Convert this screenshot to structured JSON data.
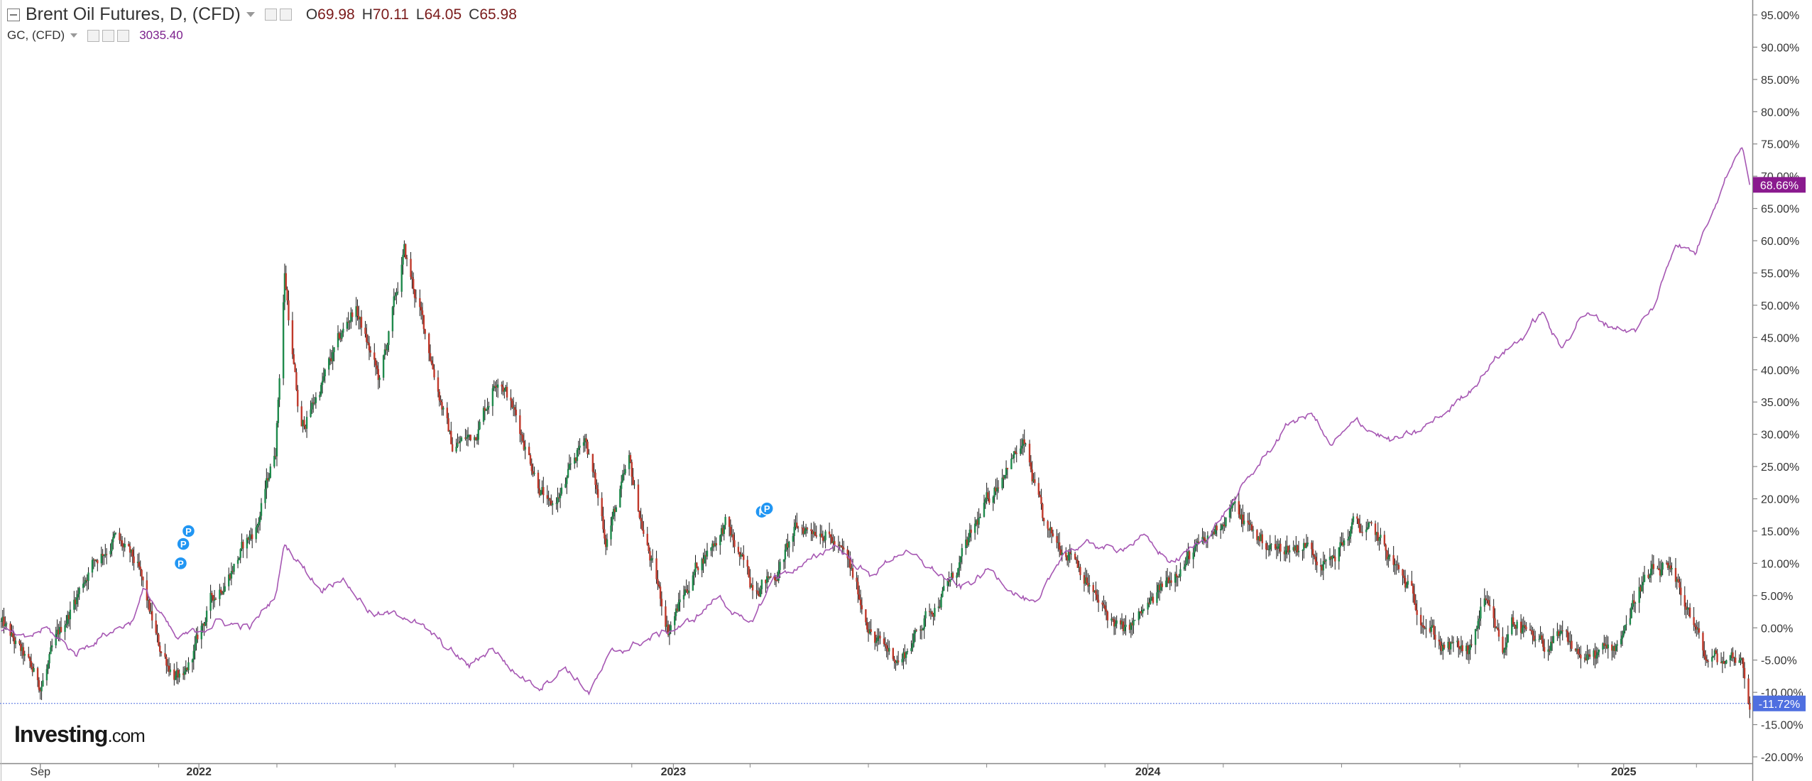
{
  "legend": {
    "main_title": "Brent Oil Futures, D, (CFD)",
    "ohlc": [
      {
        "key": "O",
        "value": "69.98"
      },
      {
        "key": "H",
        "value": "70.11"
      },
      {
        "key": "L",
        "value": "64.05"
      },
      {
        "key": "C",
        "value": "65.98"
      }
    ],
    "compare_title": "GC, (CFD)",
    "compare_value": "3035.40"
  },
  "watermark": {
    "brand": "Investing",
    "suffix": ".com"
  },
  "colors": {
    "bull": "#1f8a4c",
    "bear": "#c0392b",
    "compare_line": "#a657b3",
    "compare_badge": "#8a1a8e",
    "last_price_badge": "#4f6fe0",
    "event_marker": "#2196f3"
  },
  "chart_data": {
    "type": "line",
    "title": "Brent Oil Futures, D, (CFD)",
    "y_unit": "percent change",
    "ylim": [
      -20,
      95
    ],
    "y_ticks": [
      "95.00%",
      "90.00%",
      "85.00%",
      "80.00%",
      "75.00%",
      "70.00%",
      "65.00%",
      "60.00%",
      "55.00%",
      "50.00%",
      "45.00%",
      "40.00%",
      "35.00%",
      "30.00%",
      "25.00%",
      "20.00%",
      "15.00%",
      "10.00%",
      "5.00%",
      "0.00%",
      "-5.00%",
      "-10.00%",
      "-15.00%",
      "-20.00%"
    ],
    "x_ticks": [
      "Sep",
      "2022",
      "2023",
      "2024",
      "2025"
    ],
    "x_tick_dates": [
      "2021-09-01",
      "2022-01-01",
      "2023-01-01",
      "2024-01-01",
      "2025-01-01"
    ],
    "xlim": [
      "2021-08-01",
      "2025-04-10"
    ],
    "grid": false,
    "series": [
      {
        "name": "Brent Oil Futures, D, (CFD)",
        "style": "candlestick",
        "badge": "-11.72%",
        "x": [
          "2021-08-01",
          "2021-08-20",
          "2021-09-01",
          "2021-09-20",
          "2021-10-10",
          "2021-10-28",
          "2021-11-15",
          "2021-12-01",
          "2021-12-20",
          "2022-01-10",
          "2022-01-28",
          "2022-02-15",
          "2022-03-01",
          "2022-03-08",
          "2022-03-20",
          "2022-04-10",
          "2022-05-01",
          "2022-05-20",
          "2022-06-08",
          "2022-06-25",
          "2022-07-15",
          "2022-08-01",
          "2022-08-20",
          "2022-09-10",
          "2022-09-28",
          "2022-10-10",
          "2022-10-25",
          "2022-11-10",
          "2022-11-28",
          "2022-12-10",
          "2022-12-28",
          "2023-01-20",
          "2023-02-10",
          "2023-03-01",
          "2023-03-20",
          "2023-04-05",
          "2023-04-25",
          "2023-05-15",
          "2023-06-05",
          "2023-06-25",
          "2023-07-15",
          "2023-08-05",
          "2023-08-25",
          "2023-09-15",
          "2023-09-28",
          "2023-10-15",
          "2023-11-05",
          "2023-11-25",
          "2023-12-15",
          "2024-01-05",
          "2024-01-25",
          "2024-02-15",
          "2024-03-05",
          "2024-03-25",
          "2024-04-10",
          "2024-05-01",
          "2024-05-20",
          "2024-06-08",
          "2024-06-25",
          "2024-07-10",
          "2024-07-28",
          "2024-08-15",
          "2024-09-05",
          "2024-09-15",
          "2024-10-01",
          "2024-10-07",
          "2024-10-25",
          "2024-11-15",
          "2024-12-05",
          "2024-12-25",
          "2025-01-15",
          "2025-02-01",
          "2025-02-20",
          "2025-03-05",
          "2025-03-20",
          "2025-04-01",
          "2025-04-08"
        ],
        "values": [
          1,
          -5,
          -9,
          1,
          10,
          14,
          9,
          -3,
          -9,
          4,
          10,
          16,
          28,
          55,
          30,
          40,
          50,
          38,
          58,
          45,
          28,
          30,
          40,
          28,
          18,
          22,
          30,
          14,
          25,
          14,
          0,
          10,
          16,
          7,
          8,
          15,
          16,
          10,
          -2,
          -5,
          2,
          8,
          17,
          26,
          28,
          14,
          12,
          3,
          -1,
          4,
          10,
          13,
          19,
          14,
          12,
          13,
          10,
          16,
          14,
          9,
          3,
          -3,
          -4,
          4,
          -4,
          2,
          -3,
          -2,
          -5,
          -3,
          7,
          9,
          3,
          -5,
          -5,
          -4,
          -11.72
        ]
      },
      {
        "name": "GC, (CFD)",
        "style": "line",
        "badge": "68.66%",
        "x": [
          "2021-08-01",
          "2021-08-20",
          "2021-09-05",
          "2021-09-28",
          "2021-10-20",
          "2021-11-10",
          "2021-11-20",
          "2021-12-15",
          "2022-01-15",
          "2022-02-10",
          "2022-03-01",
          "2022-03-08",
          "2022-04-05",
          "2022-04-20",
          "2022-05-15",
          "2022-06-10",
          "2022-07-10",
          "2022-07-28",
          "2022-08-15",
          "2022-09-01",
          "2022-09-20",
          "2022-10-10",
          "2022-10-28",
          "2022-11-15",
          "2022-12-10",
          "2023-01-15",
          "2023-02-05",
          "2023-02-28",
          "2023-03-20",
          "2023-04-15",
          "2023-05-05",
          "2023-06-01",
          "2023-06-25",
          "2023-07-20",
          "2023-08-10",
          "2023-09-01",
          "2023-09-25",
          "2023-10-08",
          "2023-10-28",
          "2023-11-20",
          "2023-12-05",
          "2023-12-28",
          "2024-01-20",
          "2024-02-15",
          "2024-03-08",
          "2024-04-05",
          "2024-04-20",
          "2024-05-08",
          "2024-05-20",
          "2024-06-10",
          "2024-07-05",
          "2024-07-25",
          "2024-08-15",
          "2024-09-05",
          "2024-09-25",
          "2024-10-15",
          "2024-10-30",
          "2024-11-14",
          "2024-11-30",
          "2024-12-20",
          "2025-01-10",
          "2025-01-25",
          "2025-02-10",
          "2025-02-25",
          "2025-03-10",
          "2025-03-25",
          "2025-04-02",
          "2025-04-08"
        ],
        "values": [
          0,
          -2,
          0,
          -4,
          -1,
          1,
          6,
          -2,
          1,
          0,
          5,
          13,
          6,
          8,
          2,
          2,
          -3,
          -6,
          -3,
          -7,
          -9,
          -6,
          -10,
          -4,
          -2,
          1,
          5,
          0,
          8,
          10,
          13,
          8,
          12,
          9,
          6,
          9,
          5,
          3,
          12,
          13,
          12,
          14,
          10,
          14,
          20,
          28,
          32,
          33,
          28,
          32,
          29,
          30,
          33,
          37,
          42,
          45,
          49,
          43,
          49,
          47,
          46,
          50,
          60,
          58,
          65,
          72,
          75,
          68.66
        ]
      }
    ],
    "last_value_line": -11.72,
    "event_markers": [
      {
        "label": "P",
        "x": "2021-12-18",
        "y": 10
      },
      {
        "label": "P",
        "x": "2021-12-20",
        "y": 13
      },
      {
        "label": "P",
        "x": "2021-12-24",
        "y": 15
      },
      {
        "label": "P",
        "x": "2023-03-10",
        "y": 18
      },
      {
        "label": "P",
        "x": "2023-03-14",
        "y": 18.5
      }
    ]
  }
}
